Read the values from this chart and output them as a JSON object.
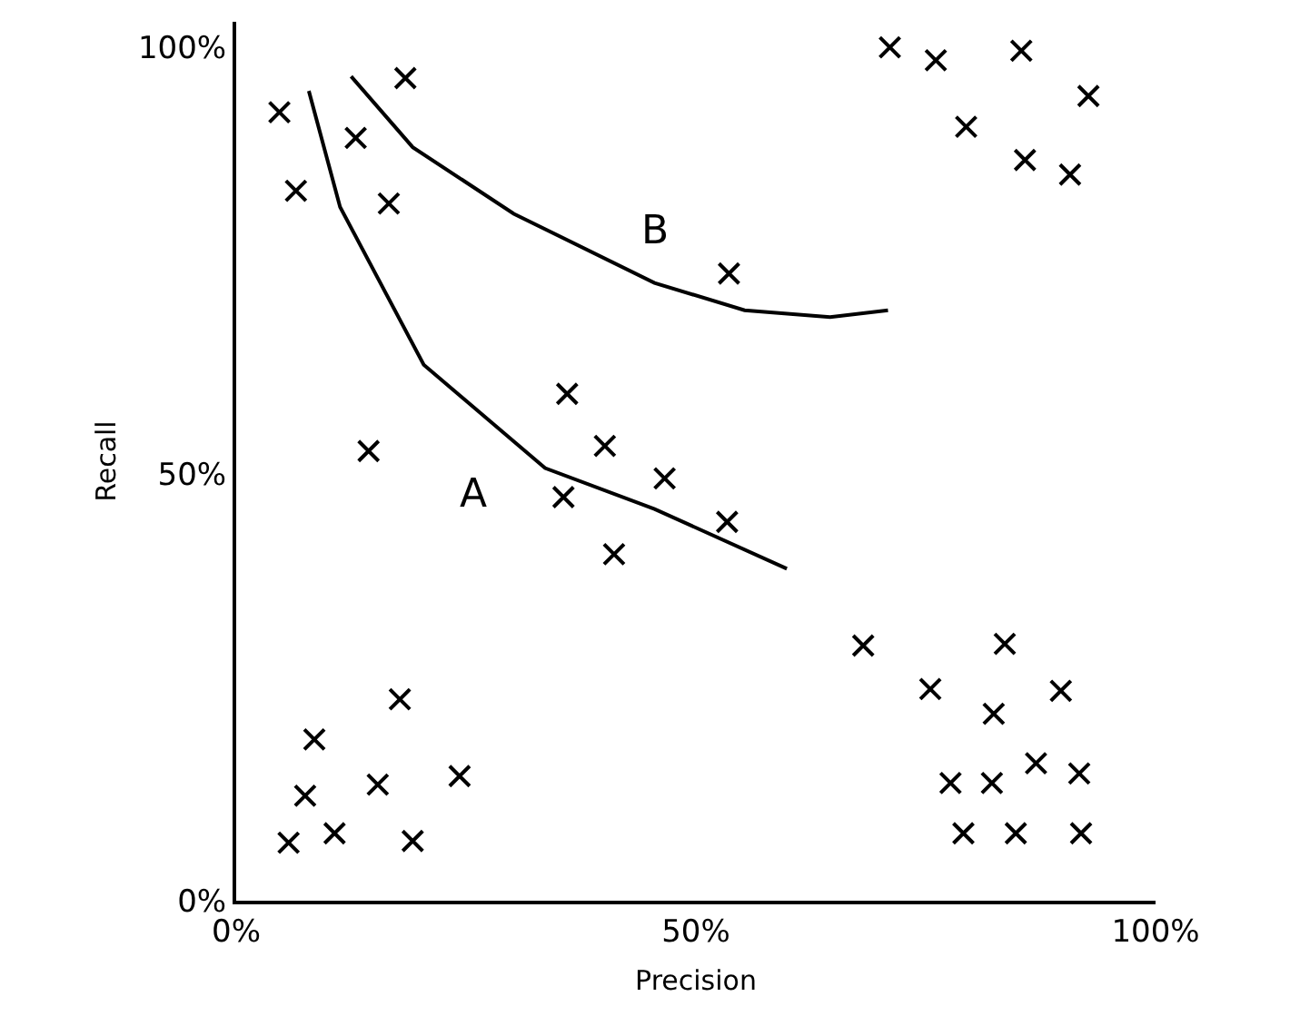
{
  "chart_data": {
    "type": "scatter",
    "xlabel": "Precision",
    "ylabel": "Recall",
    "xlim": [
      0,
      100
    ],
    "ylim": [
      0,
      103
    ],
    "xticks": [
      {
        "value": 0,
        "label": "0%"
      },
      {
        "value": 50,
        "label": "50%"
      },
      {
        "value": 100,
        "label": "100%"
      }
    ],
    "yticks": [
      {
        "value": 0,
        "label": "0%"
      },
      {
        "value": 50,
        "label": "50%"
      },
      {
        "value": 100,
        "label": "100%"
      }
    ],
    "grid": false,
    "legend": false,
    "marker": "cross",
    "line_style": "solid",
    "series": [
      {
        "color": "#000000",
        "x": [
          4.7,
          6.5,
          13.0,
          16.6,
          18.4,
          14.4,
          36.0,
          40.1,
          35.6,
          41.1,
          46.6,
          53.4,
          53.6,
          71.1,
          76.1,
          85.4,
          92.7,
          79.4,
          85.8,
          90.7,
          17.8,
          8.5,
          7.5,
          15.4,
          24.3,
          5.7,
          10.7,
          19.2,
          68.2,
          83.6,
          75.5,
          82.4,
          89.7,
          77.7,
          82.2,
          87.0,
          91.7,
          79.1,
          84.8,
          91.9
        ],
        "values": [
          92.4,
          83.2,
          89.4,
          81.7,
          96.4,
          52.7,
          59.4,
          53.3,
          47.3,
          40.6,
          49.5,
          44.4,
          73.5,
          100,
          98.5,
          99.6,
          94.3,
          90.7,
          86.8,
          85.1,
          23.6,
          18.9,
          12.3,
          13.6,
          14.6,
          6.8,
          7.9,
          7.0,
          29.9,
          30.1,
          24.8,
          21.9,
          24.6,
          13.8,
          13.8,
          16.1,
          14.9,
          7.9,
          7.9,
          7.9
        ]
      },
      {
        "type": "line",
        "name": "A",
        "marker": "none",
        "color": "#000000",
        "x": [
          7.9,
          11.3,
          20.4,
          33.6,
          45.5,
          59.9
        ],
        "values": [
          94.9,
          81.3,
          62.8,
          50.7,
          45.9,
          38.9
        ]
      },
      {
        "type": "line",
        "name": "B",
        "marker": "none",
        "color": "#000000",
        "x": [
          12.5,
          19.2,
          30.2,
          45.5,
          55.3,
          64.6,
          70.9
        ],
        "values": [
          96.6,
          88.3,
          80.5,
          72.4,
          69.2,
          68.4,
          69.2
        ]
      }
    ]
  }
}
